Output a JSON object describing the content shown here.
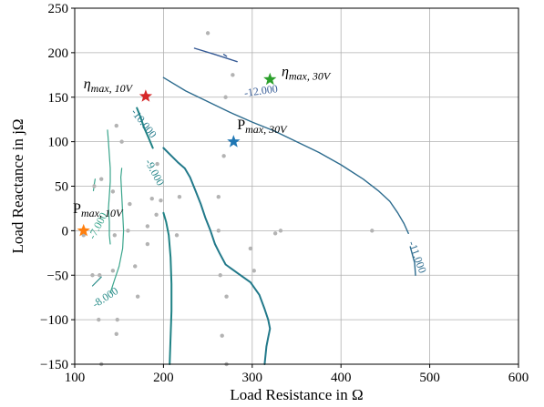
{
  "chart_data": {
    "type": "contour",
    "xlabel": "Load Resistance in Ω",
    "ylabel": "Load Reactance in jΩ",
    "xlim": [
      100,
      600
    ],
    "ylim": [
      -150,
      250
    ],
    "xticks": [
      100,
      200,
      300,
      400,
      500,
      600
    ],
    "yticks": [
      -150,
      -100,
      -50,
      0,
      50,
      100,
      150,
      200,
      250
    ],
    "grid": true,
    "contours": [
      {
        "level": "-7.000",
        "color": "#3aa58c",
        "width": 1.2,
        "segments": [
          [
            [
              123,
              58
            ],
            [
              122,
              52
            ],
            [
              121,
              45
            ]
          ],
          [
            [
              140,
              -15
            ],
            [
              139,
              -5
            ],
            [
              139,
              10
            ],
            [
              138,
              25
            ],
            [
              139,
              40
            ],
            [
              140,
              55
            ],
            [
              140,
              70
            ],
            [
              139,
              85
            ],
            [
              138,
              100
            ],
            [
              137,
              113
            ]
          ],
          [
            [
              140,
              -70
            ],
            [
              145,
              -55
            ],
            [
              150,
              -40
            ],
            [
              154,
              -20
            ],
            [
              155,
              0
            ],
            [
              154,
              20
            ],
            [
              153,
              40
            ],
            [
              152,
              60
            ],
            [
              153,
              70
            ]
          ]
        ]
      },
      {
        "level": "-8.000",
        "color": "#2a8d8a",
        "width": 1.2,
        "segments": [
          [
            [
              120,
              -62
            ],
            [
              130,
              -52
            ]
          ]
        ]
      },
      {
        "level": "-9.000",
        "color": "#1f8285",
        "width": 2.0,
        "segments": [
          [
            [
              170,
              138
            ],
            [
              174,
              128
            ],
            [
              178,
              116
            ],
            [
              183,
              105
            ],
            [
              188,
              93
            ]
          ],
          [
            [
              200,
              20
            ],
            [
              203,
              10
            ],
            [
              206,
              -5
            ],
            [
              208,
              -30
            ],
            [
              209,
              -60
            ],
            [
              209,
              -90
            ],
            [
              208,
              -120
            ],
            [
              207,
              -150
            ]
          ]
        ]
      },
      {
        "level": "-10.000",
        "color": "#22798a",
        "width": 2.0,
        "segments": [
          [
            [
              200,
              93
            ],
            [
              208,
              85
            ],
            [
              216,
              77
            ],
            [
              224,
              70
            ],
            [
              230,
              60
            ],
            [
              236,
              45
            ],
            [
              242,
              30
            ],
            [
              247,
              15
            ],
            [
              253,
              0
            ],
            [
              258,
              -15
            ],
            [
              263,
              -25
            ],
            [
              270,
              -38
            ],
            [
              284,
              -48
            ],
            [
              298,
              -58
            ],
            [
              308,
              -72
            ],
            [
              314,
              -88
            ],
            [
              318,
              -100
            ],
            [
              320,
              -110
            ],
            [
              318,
              -120
            ],
            [
              316,
              -130
            ],
            [
              314,
              -150
            ]
          ]
        ]
      },
      {
        "level": "-11.000",
        "color": "#2c6b8e",
        "width": 1.4,
        "segments": [
          [
            [
              200,
              172
            ],
            [
              225,
              157
            ],
            [
              250,
              145
            ],
            [
              275,
              133
            ],
            [
              300,
              122
            ],
            [
              325,
              112
            ],
            [
              350,
              100
            ],
            [
              375,
              88
            ],
            [
              400,
              74
            ],
            [
              425,
              58
            ],
            [
              442,
              45
            ],
            [
              455,
              33
            ],
            [
              464,
              20
            ],
            [
              471,
              8
            ],
            [
              476,
              -3
            ]
          ],
          [
            [
              478,
              -18
            ],
            [
              483,
              -36
            ],
            [
              484,
              -50
            ]
          ]
        ]
      },
      {
        "level": "-12.000",
        "color": "#355a95",
        "width": 1.4,
        "segments": [
          [
            [
              235,
              205
            ],
            [
              258,
              198
            ],
            [
              283,
              190
            ]
          ],
          [
            [
              268,
              198
            ],
            [
              271,
              196
            ]
          ]
        ]
      }
    ],
    "contour_labels": [
      {
        "text": "-7.000",
        "x": 127,
        "y": 5,
        "angle": -62
      },
      {
        "text": "-8.000",
        "x": 135,
        "y": -76,
        "angle": -33
      },
      {
        "text": "-9.000",
        "x": 189,
        "y": 65,
        "angle": 62
      },
      {
        "text": "-10.000",
        "x": 177,
        "y": 120,
        "angle": 52
      },
      {
        "text": "-11.000",
        "x": 485,
        "y": -30,
        "angle": 70
      },
      {
        "text": "-12.000",
        "x": 310,
        "y": 156,
        "angle": -8
      }
    ],
    "scatter_points": [
      [
        250,
        222
      ],
      [
        278,
        175
      ],
      [
        270,
        150
      ],
      [
        147,
        118
      ],
      [
        130,
        58
      ],
      [
        122,
        50
      ],
      [
        143,
        44
      ],
      [
        187,
        36
      ],
      [
        162,
        30
      ],
      [
        197,
        34
      ],
      [
        192,
        18
      ],
      [
        218,
        38
      ],
      [
        262,
        38
      ],
      [
        268,
        84
      ],
      [
        153,
        100
      ],
      [
        193,
        75
      ],
      [
        215,
        -5
      ],
      [
        145,
        -5
      ],
      [
        182,
        5
      ],
      [
        128,
        -50
      ],
      [
        120,
        -50
      ],
      [
        143,
        -45
      ],
      [
        168,
        -40
      ],
      [
        182,
        -15
      ],
      [
        171,
        -74
      ],
      [
        127,
        -100
      ],
      [
        148,
        -100
      ],
      [
        147,
        -116
      ],
      [
        130,
        -150
      ],
      [
        264,
        -50
      ],
      [
        271,
        -74
      ],
      [
        266,
        -118
      ],
      [
        271,
        -150
      ],
      [
        326,
        -3
      ],
      [
        332,
        0
      ],
      [
        435,
        0
      ],
      [
        262,
        0
      ],
      [
        298,
        -20
      ],
      [
        302,
        -45
      ],
      [
        160,
        0
      ],
      [
        110,
        -5
      ]
    ],
    "markers": [
      {
        "x": 180,
        "y": 151,
        "color": "#d62728",
        "shape": "star",
        "label": "η_max,10V"
      },
      {
        "x": 320,
        "y": 170,
        "color": "#2ca02c",
        "shape": "star",
        "label": "η_max,30V"
      },
      {
        "x": 279,
        "y": 100,
        "color": "#1f77b4",
        "shape": "star",
        "label": "P_max,30V"
      },
      {
        "x": 110,
        "y": 0,
        "color": "#ff7f0e",
        "shape": "star",
        "label": "P_max,10V"
      }
    ],
    "annotations": [
      {
        "sym": "η",
        "sub": "max, 10V",
        "x": 110,
        "y": 160
      },
      {
        "sym": "η",
        "sub": "max, 30V",
        "x": 333,
        "y": 174
      },
      {
        "sym": "P",
        "sub": "max, 30V",
        "x": 283,
        "y": 114
      },
      {
        "sym": "P",
        "sub": "max, 10V",
        "x": 98,
        "y": 20
      }
    ]
  }
}
